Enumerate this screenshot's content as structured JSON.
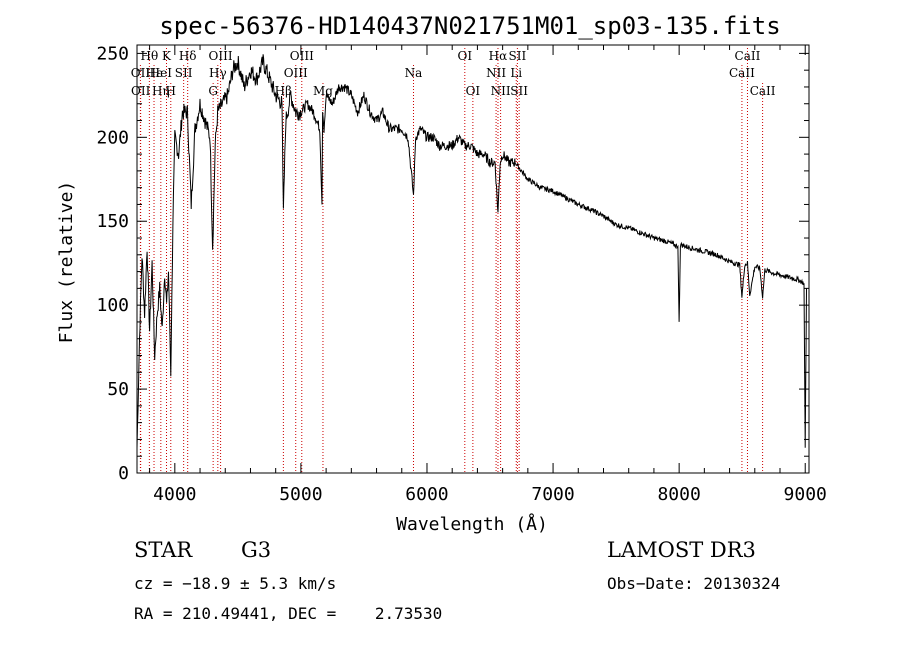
{
  "chart_data": {
    "type": "line",
    "title": "spec-56376-HD140437N021751M01_sp03-135.fits",
    "xlabel": "Wavelength (Å)",
    "ylabel": "Flux (relative)",
    "xlim": [
      3700,
      9030
    ],
    "ylim": [
      0,
      255
    ],
    "xticks": [
      4000,
      5000,
      6000,
      7000,
      8000,
      9000
    ],
    "yticks": [
      0,
      50,
      100,
      150,
      200,
      250
    ],
    "spectrum": {
      "x": [
        3700,
        3720,
        3740,
        3760,
        3780,
        3800,
        3820,
        3840,
        3860,
        3880,
        3900,
        3920,
        3935,
        3950,
        3968,
        3985,
        4000,
        4030,
        4060,
        4100,
        4130,
        4160,
        4200,
        4240,
        4280,
        4300,
        4320,
        4340,
        4380,
        4420,
        4460,
        4500,
        4550,
        4600,
        4650,
        4700,
        4750,
        4800,
        4850,
        4861,
        4880,
        4920,
        4960,
        5000,
        5050,
        5100,
        5150,
        5167,
        5172,
        5183,
        5200,
        5250,
        5300,
        5350,
        5400,
        5450,
        5500,
        5550,
        5600,
        5650,
        5700,
        5750,
        5800,
        5850,
        5893,
        5910,
        5950,
        6000,
        6050,
        6100,
        6150,
        6200,
        6250,
        6300,
        6350,
        6400,
        6450,
        6500,
        6540,
        6563,
        6580,
        6600,
        6650,
        6700,
        6750,
        6800,
        6900,
        7000,
        7100,
        7200,
        7300,
        7400,
        7500,
        7600,
        7700,
        7800,
        7900,
        7990,
        8000,
        8010,
        8100,
        8200,
        8300,
        8400,
        8480,
        8498,
        8520,
        8542,
        8560,
        8600,
        8640,
        8662,
        8680,
        8750,
        8800,
        8850,
        8900,
        8950,
        8990,
        9000,
        9010
      ],
      "y": [
        15,
        80,
        130,
        95,
        135,
        85,
        125,
        70,
        95,
        110,
        85,
        120,
        100,
        120,
        60,
        150,
        200,
        190,
        215,
        215,
        160,
        205,
        220,
        210,
        200,
        135,
        195,
        215,
        220,
        225,
        240,
        245,
        230,
        240,
        235,
        245,
        235,
        225,
        220,
        155,
        210,
        225,
        215,
        215,
        220,
        215,
        205,
        160,
        215,
        205,
        225,
        220,
        230,
        230,
        225,
        215,
        225,
        215,
        210,
        215,
        205,
        205,
        205,
        200,
        165,
        200,
        205,
        200,
        200,
        195,
        195,
        195,
        200,
        195,
        195,
        190,
        190,
        185,
        185,
        155,
        185,
        190,
        185,
        185,
        180,
        175,
        170,
        168,
        164,
        160,
        157,
        153,
        148,
        146,
        143,
        140,
        138,
        135,
        90,
        136,
        134,
        132,
        130,
        126,
        124,
        105,
        124,
        125,
        106,
        123,
        122,
        105,
        121,
        119,
        118,
        117,
        116,
        115,
        113,
        15,
        110
      ]
    },
    "line_markers": [
      {
        "label": "Hθ",
        "x": 3798,
        "row": 1
      },
      {
        "label": "OII",
        "x": 3727,
        "row": 2
      },
      {
        "label": "OII",
        "x": 3729,
        "row": 3
      },
      {
        "label": "Hε",
        "x": 3835,
        "row": 2
      },
      {
        "label": "Hη",
        "x": 3889,
        "row": 3
      },
      {
        "label": "HeI",
        "x": 3889,
        "row": 2
      },
      {
        "label": "K",
        "x": 3934,
        "row": 1
      },
      {
        "label": "SII",
        "x": 4070,
        "row": 2
      },
      {
        "label": "H",
        "x": 3968,
        "row": 3
      },
      {
        "label": "Hδ",
        "x": 4102,
        "row": 1
      },
      {
        "label": "OIII",
        "x": 4363,
        "row": 1
      },
      {
        "label": "Hγ",
        "x": 4341,
        "row": 2
      },
      {
        "label": "G",
        "x": 4304,
        "row": 3
      },
      {
        "label": "OIII",
        "x": 5007,
        "row": 1
      },
      {
        "label": "OIII",
        "x": 4959,
        "row": 2
      },
      {
        "label": "Hβ",
        "x": 4861,
        "row": 3
      },
      {
        "label": "Mg",
        "x": 5175,
        "row": 3
      },
      {
        "label": "Na",
        "x": 5893,
        "row": 2
      },
      {
        "label": "OI",
        "x": 6300,
        "row": 1
      },
      {
        "label": "OI",
        "x": 6364,
        "row": 3
      },
      {
        "label": "Hα",
        "x": 6563,
        "row": 1
      },
      {
        "label": "NII",
        "x": 6548,
        "row": 2
      },
      {
        "label": "NII",
        "x": 6584,
        "row": 3
      },
      {
        "label": "SII",
        "x": 6717,
        "row": 1
      },
      {
        "label": "Li",
        "x": 6708,
        "row": 2
      },
      {
        "label": "SII",
        "x": 6731,
        "row": 3
      },
      {
        "label": "CaII",
        "x": 8542,
        "row": 1
      },
      {
        "label": "CaII",
        "x": 8498,
        "row": 2
      },
      {
        "label": "CaII",
        "x": 8662,
        "row": 3
      }
    ]
  },
  "info": {
    "object_class": "STAR",
    "subclass": "G3",
    "survey": "LAMOST DR3",
    "cz_line": "cz = −18.9 ± 5.3 km/s",
    "obs_date": "Obs−Date: 20130324",
    "coords": "RA = 210.49441, DEC =    2.73530"
  },
  "colors": {
    "line_marker": "#cc0000",
    "spectrum": "#000000",
    "axes": "#000000"
  }
}
